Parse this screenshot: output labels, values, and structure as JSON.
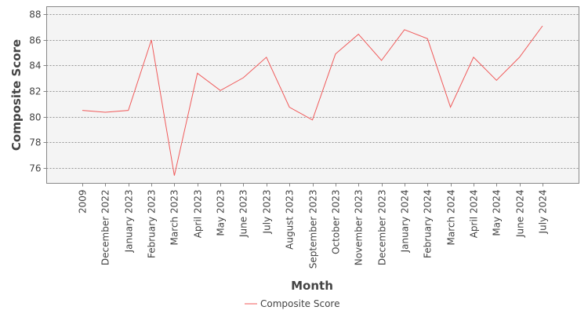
{
  "chart_data": {
    "type": "line",
    "xlabel": "Month",
    "ylabel": "Composite Score",
    "ylim": [
      74.8,
      88.6
    ],
    "yticks": [
      76,
      78,
      80,
      82,
      84,
      86,
      88
    ],
    "grid": true,
    "legend": "bottom-center",
    "categories": [
      "2009",
      "December 2022",
      "January 2023",
      "February 2023",
      "March 2023",
      "April 2023",
      "May 2023",
      "June 2023",
      "July 2023",
      "August 2023",
      "September 2023",
      "October 2023",
      "November 2023",
      "December 2023",
      "January 2024",
      "February 2024",
      "March 2024",
      "April 2024",
      "May 2024",
      "June 2024",
      "July 2024"
    ],
    "series": [
      {
        "name": "Composite Score",
        "color": "#f05a5a",
        "values": [
          80.5,
          80.35,
          80.5,
          86.0,
          75.4,
          83.4,
          82.05,
          83.05,
          84.65,
          80.75,
          79.75,
          84.9,
          86.45,
          84.4,
          86.8,
          86.1,
          80.75,
          84.65,
          82.85,
          84.65,
          87.1
        ]
      }
    ]
  }
}
